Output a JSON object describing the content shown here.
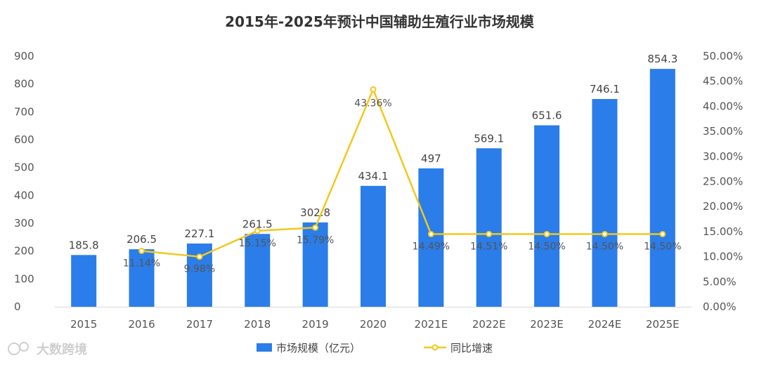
{
  "chart_data": {
    "type": "bar",
    "title": "2015年-2025年预计中国辅助生殖行业市场规模",
    "categories": [
      "2015",
      "2016",
      "2017",
      "2018",
      "2019",
      "2020",
      "2021E",
      "2022E",
      "2023E",
      "2024E",
      "2025E"
    ],
    "series": [
      {
        "name": "市场规模（亿元）",
        "type": "bar",
        "color": "#2b7de9",
        "values": [
          185.8,
          206.5,
          227.1,
          261.5,
          302.8,
          434.1,
          497,
          569.1,
          651.6,
          746.1,
          854.3
        ],
        "labels": [
          "185.8",
          "206.5",
          "227.1",
          "261.5",
          "302.8",
          "434.1",
          "497",
          "569.1",
          "651.6",
          "746.1",
          "854.3"
        ]
      },
      {
        "name": "同比增速",
        "type": "line",
        "axis": "right",
        "color": "#f2c81e",
        "values": [
          null,
          11.14,
          9.98,
          15.15,
          15.79,
          43.36,
          14.49,
          14.51,
          14.5,
          14.5,
          14.5
        ],
        "labels": [
          "",
          "11.14%",
          "9.98%",
          "15.15%",
          "15.79%",
          "43.36%",
          "14.49%",
          "14.51%",
          "14.50%",
          "14.50%",
          "14.50%"
        ]
      }
    ],
    "ylim": [
      0,
      900
    ],
    "yticks": [
      "0",
      "100",
      "200",
      "300",
      "400",
      "500",
      "600",
      "700",
      "800",
      "900"
    ],
    "y2lim": [
      0,
      50
    ],
    "y2ticks": [
      "0.00%",
      "5.00%",
      "10.00%",
      "15.00%",
      "20.00%",
      "25.00%",
      "30.00%",
      "35.00%",
      "40.00%",
      "45.00%",
      "50.00%"
    ],
    "legend_position": "bottom",
    "grid": false
  },
  "watermark": "大数跨境"
}
